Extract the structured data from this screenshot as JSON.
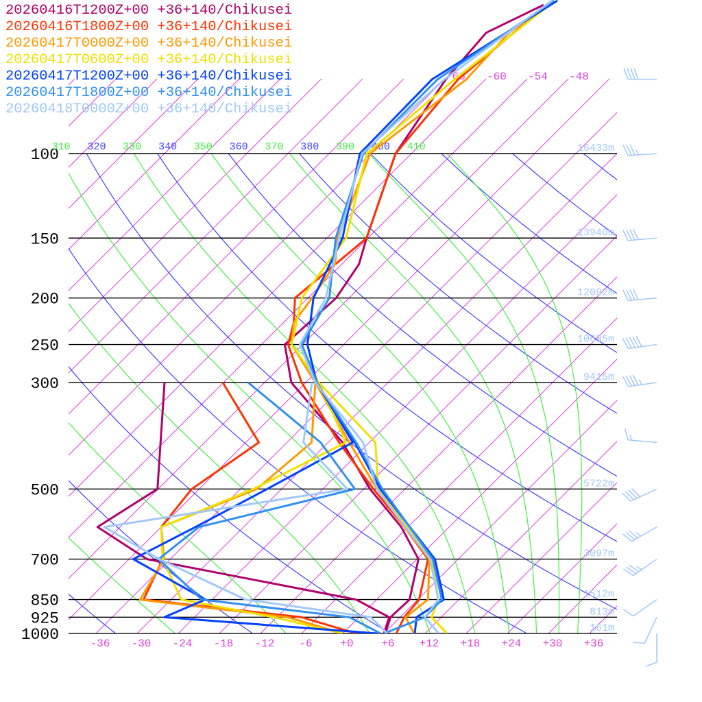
{
  "legend": [
    {
      "label": "20260416T1200Z+00 +36+140/Chikusei",
      "color": "#b0006a"
    },
    {
      "label": "20260416T1800Z+00 +36+140/Chikusei",
      "color": "#ff3300"
    },
    {
      "label": "20260417T0000Z+00 +36+140/Chikusei",
      "color": "#ff9900"
    },
    {
      "label": "20260417T0600Z+00 +36+140/Chikusei",
      "color": "#f0e000"
    },
    {
      "label": "20260417T1200Z+00 +36+140/Chikusei",
      "color": "#0040ff"
    },
    {
      "label": "20260417T1800Z+00 +36+140/Chikusei",
      "color": "#3090f0"
    },
    {
      "label": "20260418T0000Z+00 +36+140/Chikusei",
      "color": "#a0c8f8"
    }
  ],
  "colors": {
    "isobar": "#000000",
    "isotherm": "#e040e0",
    "dry_adiabat": "#4040ff",
    "moist_adiabat": "#40f040",
    "height_label": "#a0c8f8",
    "barb": "#a0c8f8"
  },
  "chart_data": {
    "type": "line",
    "subtype": "skew-T log-p sounding",
    "xlabel": "Temperature (°C)",
    "ylabel": "Pressure (hPa)",
    "pressure_ticks": [
      "100",
      "150",
      "200",
      "250",
      "300",
      "500",
      "700",
      "850",
      "925",
      "1000"
    ],
    "pressure_levels": [
      100,
      150,
      200,
      250,
      300,
      500,
      700,
      850,
      925,
      1000
    ],
    "height_labels": [
      "16433m",
      "13940m",
      "12092m",
      "10635m",
      "9415m",
      "5722m",
      "3097m",
      "1512m",
      "813m",
      "161m"
    ],
    "temp_ticks": [
      "-36",
      "-30",
      "-24",
      "-18",
      "-12",
      "-6",
      "+0",
      "+6",
      "+12",
      "+18",
      "+24",
      "+30",
      "+36"
    ],
    "temp_tick_values": [
      -36,
      -30,
      -24,
      -18,
      -12,
      -6,
      0,
      6,
      12,
      18,
      24,
      30,
      36
    ],
    "upper_isotherm_labels": [
      "-66",
      "-60",
      "-54",
      "-48"
    ],
    "upper_isotherm_values": [
      -66,
      -60,
      -54,
      -48
    ],
    "dry_adiabat_labels": [
      "320",
      "340",
      "360",
      "380",
      "400"
    ],
    "dry_adiabat_values": [
      320,
      340,
      360,
      380,
      400
    ],
    "moist_adiabat_labels": [
      "310",
      "330",
      "350",
      "370",
      "390",
      "410"
    ],
    "moist_adiabat_values": [
      310,
      330,
      350,
      370,
      390,
      410
    ],
    "series": [
      {
        "name": "20260416T1200Z+00",
        "temperature": [
          [
            1000,
            6.2
          ],
          [
            925,
            4.6
          ],
          [
            850,
            4.8
          ],
          [
            700,
            0.2
          ],
          [
            600,
            -7
          ],
          [
            500,
            -17.1
          ],
          [
            400,
            -27.9
          ],
          [
            300,
            -44.1
          ],
          [
            250,
            -50.6
          ],
          [
            200,
            -49.9
          ],
          [
            170,
            -51.5
          ],
          [
            150,
            -54.2
          ],
          [
            100,
            -62.3
          ],
          [
            70,
            -65.8
          ],
          [
            56,
            -66.7
          ],
          [
            49,
            -62.4
          ]
        ],
        "dewpoint": [
          [
            1000,
            6
          ],
          [
            925,
            4.4
          ],
          [
            850,
            -3
          ],
          [
            700,
            -39.4
          ],
          [
            600,
            -51.3
          ],
          [
            500,
            -48.1
          ],
          [
            300,
            -62.6
          ]
        ]
      },
      {
        "name": "20260416T1800Z+00",
        "temperature": [
          [
            1000,
            7.8
          ],
          [
            925,
            6.6
          ],
          [
            850,
            6.2
          ],
          [
            700,
            1.6
          ],
          [
            600,
            -6.5
          ],
          [
            500,
            -16.6
          ],
          [
            400,
            -28.4
          ],
          [
            300,
            -42.6
          ],
          [
            250,
            -50.1
          ],
          [
            225,
            -52.5
          ],
          [
            200,
            -55.9
          ],
          [
            150,
            -54.2
          ],
          [
            100,
            -62.3
          ],
          [
            70,
            -64
          ],
          [
            49,
            -61.9
          ]
        ],
        "dewpoint": [
          [
            1000,
            2
          ],
          [
            925,
            -8.4
          ],
          [
            850,
            -34
          ],
          [
            700,
            -37.1
          ],
          [
            600,
            -42
          ],
          [
            500,
            -43.1
          ],
          [
            400,
            -40.1
          ],
          [
            300,
            -54.1
          ]
        ]
      },
      {
        "name": "20260417T0000Z+00",
        "temperature": [
          [
            1000,
            10.4
          ],
          [
            925,
            6.8
          ],
          [
            850,
            7.5
          ],
          [
            700,
            1.8
          ],
          [
            600,
            -6.5
          ],
          [
            500,
            -16.1
          ],
          [
            400,
            -26.9
          ],
          [
            300,
            -40.6
          ],
          [
            250,
            -49.6
          ],
          [
            225,
            -52.5
          ],
          [
            200,
            -53.4
          ],
          [
            170,
            -55
          ],
          [
            150,
            -58.4
          ],
          [
            100,
            -66
          ],
          [
            70,
            -62.8
          ],
          [
            56,
            -63.4
          ],
          [
            49,
            -61.5
          ]
        ],
        "dewpoint": [
          [
            1000,
            0
          ],
          [
            925,
            -10.4
          ],
          [
            850,
            -34.5
          ],
          [
            700,
            -36.9
          ],
          [
            600,
            -42
          ],
          [
            500,
            -33.6
          ],
          [
            400,
            -32.4
          ],
          [
            300,
            -40.6
          ]
        ]
      },
      {
        "name": "20260417T0600Z+00",
        "temperature": [
          [
            1000,
            15.2
          ],
          [
            925,
            10.6
          ],
          [
            850,
            9
          ],
          [
            700,
            2.1
          ],
          [
            500,
            -15.9
          ],
          [
            400,
            -23.1
          ],
          [
            300,
            -40.1
          ],
          [
            250,
            -49.6
          ],
          [
            200,
            -54.9
          ],
          [
            150,
            -57.2
          ],
          [
            100,
            -66.5
          ],
          [
            70,
            -64.5
          ],
          [
            49,
            -61.5
          ]
        ],
        "dewpoint": [
          [
            1000,
            0
          ],
          [
            925,
            -12.4
          ],
          [
            850,
            -28.5
          ],
          [
            700,
            -37.1
          ],
          [
            600,
            -42
          ],
          [
            500,
            -34.1
          ],
          [
            400,
            -27.4
          ],
          [
            300,
            -40.1
          ]
        ]
      },
      {
        "name": "20260417T1200Z+00",
        "temperature": [
          [
            1000,
            10.5
          ],
          [
            925,
            8.4
          ],
          [
            850,
            9.8
          ],
          [
            700,
            2.6
          ],
          [
            500,
            -15.6
          ],
          [
            400,
            -26.1
          ],
          [
            300,
            -40.4
          ],
          [
            250,
            -47.3
          ],
          [
            200,
            -53.2
          ],
          [
            150,
            -57.7
          ],
          [
            100,
            -67.5
          ],
          [
            70,
            -67.8
          ],
          [
            48,
            -61
          ]
        ],
        "dewpoint": [
          [
            1000,
            5
          ],
          [
            925,
            -28.4
          ],
          [
            850,
            -25
          ],
          [
            700,
            -41.4
          ],
          [
            600,
            -37
          ],
          [
            500,
            -32.1
          ],
          [
            400,
            -26.4
          ],
          [
            300,
            -40.4
          ]
        ]
      },
      {
        "name": "20260417T1800Z+00",
        "temperature": [
          [
            1000,
            6
          ],
          [
            925,
            9.6
          ],
          [
            850,
            9.5
          ],
          [
            700,
            2.3
          ],
          [
            500,
            -15.3
          ],
          [
            400,
            -25.9
          ],
          [
            300,
            -40.4
          ],
          [
            250,
            -48.1
          ],
          [
            200,
            -50.9
          ],
          [
            150,
            -58.7
          ],
          [
            100,
            -67
          ],
          [
            70,
            -67
          ],
          [
            48,
            -61.5
          ]
        ],
        "dewpoint": [
          [
            1000,
            5.5
          ],
          [
            925,
            -1.4
          ],
          [
            850,
            -25.5
          ],
          [
            700,
            -37.7
          ],
          [
            600,
            -36.5
          ],
          [
            500,
            -19.3
          ],
          [
            400,
            -31.1
          ],
          [
            300,
            -50.4
          ]
        ]
      },
      {
        "name": "20260418T0000Z+00",
        "temperature": [
          [
            1000,
            14
          ],
          [
            925,
            9.6
          ],
          [
            850,
            9
          ],
          [
            700,
            1.9
          ],
          [
            500,
            -16.1
          ],
          [
            400,
            -24.9
          ],
          [
            300,
            -40.6
          ],
          [
            250,
            -48.4
          ],
          [
            200,
            -51.4
          ],
          [
            150,
            -58.2
          ],
          [
            100,
            -67.2
          ],
          [
            70,
            -66
          ],
          [
            48,
            -61.8
          ]
        ],
        "dewpoint": [
          [
            1000,
            6.5
          ],
          [
            925,
            1.7
          ],
          [
            850,
            -19.1
          ],
          [
            700,
            -37.6
          ],
          [
            600,
            -50.3
          ],
          [
            500,
            -20.4
          ],
          [
            400,
            -33.6
          ],
          [
            300,
            -41.1
          ]
        ]
      }
    ],
    "wind_barbs": [
      {
        "p": 1000,
        "dir": 180,
        "kt": 10
      },
      {
        "p": 925,
        "dir": 205,
        "kt": 10
      },
      {
        "p": 850,
        "dir": 235,
        "kt": 10
      },
      {
        "p": 700,
        "dir": 235,
        "kt": 35
      },
      {
        "p": 600,
        "dir": 240,
        "kt": 35
      },
      {
        "p": 500,
        "dir": 245,
        "kt": 40
      },
      {
        "p": 400,
        "dir": 275,
        "kt": 15
      },
      {
        "p": 300,
        "dir": 262,
        "kt": 45
      },
      {
        "p": 250,
        "dir": 262,
        "kt": 50
      },
      {
        "p": 200,
        "dir": 265,
        "kt": 40
      },
      {
        "p": 150,
        "dir": 265,
        "kt": 40
      },
      {
        "p": 100,
        "dir": 266,
        "kt": 35
      },
      {
        "p": 70,
        "dir": 270,
        "kt": 40
      }
    ]
  }
}
